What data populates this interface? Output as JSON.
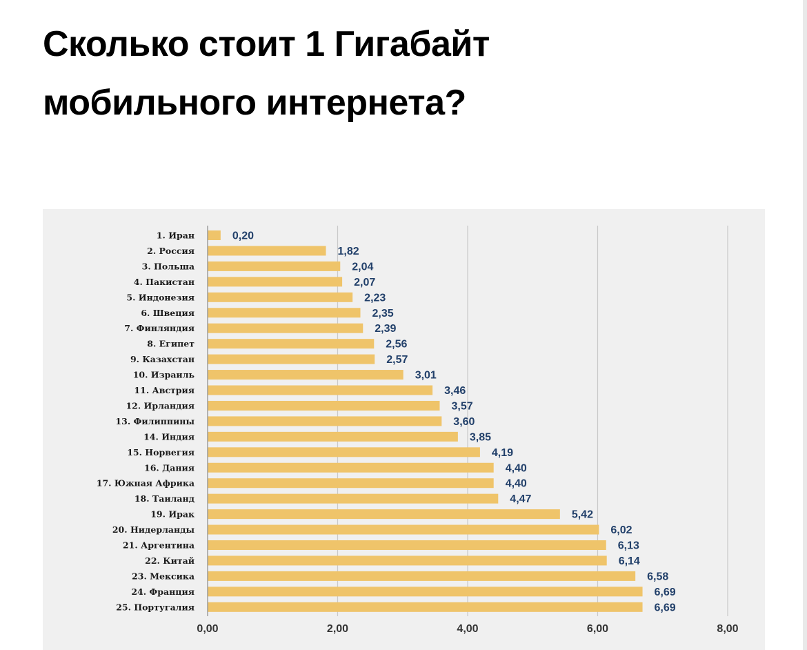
{
  "article": {
    "title_line1": "Сколько стоит 1 Гигабайт",
    "title_line2": "мобильного интернета?"
  },
  "colors": {
    "bar": "#efc46a",
    "value_label": "#22406a",
    "panel_background": "#f0f0f0",
    "gridline": "#c8c8c8"
  },
  "chart_data": {
    "type": "bar",
    "orientation": "horizontal",
    "categories": [
      "1. Иран",
      "2. Россия",
      "3. Польша",
      "4. Пакистан",
      "5. Индонезия",
      "6. Швеция",
      "7. Финляндия",
      "8. Египет",
      "9. Казахстан",
      "10. Израиль",
      "11. Австрия",
      "12. Ирландия",
      "13. Филиппины",
      "14. Индия",
      "15. Норвегия",
      "16. Дания",
      "17. Южная Африка",
      "18. Таиланд",
      "19. Ирак",
      "20. Нидерланды",
      "21. Аргентина",
      "22. Китай",
      "23. Мексика",
      "24. Франция",
      "25. Португалия"
    ],
    "values": [
      0.2,
      1.82,
      2.04,
      2.07,
      2.23,
      2.35,
      2.39,
      2.56,
      2.57,
      3.01,
      3.46,
      3.57,
      3.6,
      3.85,
      4.19,
      4.4,
      4.4,
      4.47,
      5.42,
      6.02,
      6.13,
      6.14,
      6.58,
      6.69,
      6.69
    ],
    "value_labels": [
      "0,20",
      "1,82",
      "2,04",
      "2,07",
      "2,23",
      "2,35",
      "2,39",
      "2,56",
      "2,57",
      "3,01",
      "3,46",
      "3,57",
      "3,60",
      "3,85",
      "4,19",
      "4,40",
      "4,40",
      "4,47",
      "5,42",
      "6,02",
      "6,13",
      "6,14",
      "6,58",
      "6,69",
      "6,69"
    ],
    "xlim": [
      0,
      8
    ],
    "ticks": [
      0,
      2,
      4,
      6,
      8
    ],
    "tick_labels": [
      "0,00",
      "2,00",
      "4,00",
      "6,00",
      "8,00"
    ],
    "grid": true,
    "legend": false
  }
}
